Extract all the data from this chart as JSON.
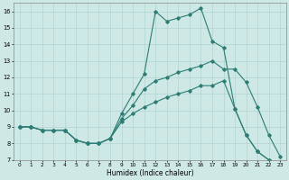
{
  "xlabel": "Humidex (Indice chaleur)",
  "bg_color": "#cde8e5",
  "line_color": "#2d7d74",
  "grid_color": "#aacfcc",
  "xlim": [
    -0.5,
    23.5
  ],
  "ylim": [
    7,
    16.5
  ],
  "xtick_labels": [
    "0",
    "1",
    "2",
    "3",
    "4",
    "5",
    "6",
    "7",
    "8",
    "9",
    "10",
    "11",
    "12",
    "13",
    "14",
    "15",
    "16",
    "17",
    "18",
    "19",
    "20",
    "21",
    "22",
    "23"
  ],
  "ytick_labels": [
    "7",
    "8",
    "9",
    "10",
    "11",
    "12",
    "13",
    "14",
    "15",
    "16"
  ],
  "yticks": [
    7,
    8,
    9,
    10,
    11,
    12,
    13,
    14,
    15,
    16
  ],
  "line_top_x": [
    0,
    1,
    2,
    3,
    4,
    5,
    6,
    7,
    8,
    9,
    10,
    11,
    12,
    13,
    14,
    15,
    16,
    17,
    18,
    19,
    20,
    21,
    22,
    23
  ],
  "line_top_y": [
    9.0,
    9.0,
    8.8,
    8.8,
    8.8,
    8.2,
    8.0,
    8.0,
    8.3,
    9.8,
    11.0,
    12.2,
    16.0,
    15.4,
    15.6,
    15.8,
    16.2,
    14.2,
    13.8,
    10.1,
    8.5,
    7.5,
    7.0,
    6.8
  ],
  "line_mid_x": [
    0,
    1,
    2,
    3,
    4,
    5,
    6,
    7,
    8,
    9,
    10,
    11,
    12,
    13,
    14,
    15,
    16,
    17,
    18,
    19,
    20,
    21,
    22,
    23
  ],
  "line_mid_y": [
    9.0,
    9.0,
    8.8,
    8.8,
    8.8,
    8.2,
    8.0,
    8.0,
    8.3,
    9.5,
    10.3,
    11.3,
    11.8,
    12.0,
    12.3,
    12.5,
    12.7,
    13.0,
    12.5,
    12.5,
    11.7,
    10.2,
    8.5,
    7.2
  ],
  "line_bot_x": [
    0,
    1,
    2,
    3,
    4,
    5,
    6,
    7,
    8,
    9,
    10,
    11,
    12,
    13,
    14,
    15,
    16,
    17,
    18,
    19,
    20,
    21,
    22,
    23
  ],
  "line_bot_y": [
    9.0,
    9.0,
    8.8,
    8.8,
    8.8,
    8.2,
    8.0,
    8.0,
    8.3,
    9.3,
    9.8,
    10.2,
    10.5,
    10.8,
    11.0,
    11.2,
    11.5,
    11.5,
    11.8,
    10.1,
    8.5,
    7.5,
    7.0,
    6.8
  ]
}
